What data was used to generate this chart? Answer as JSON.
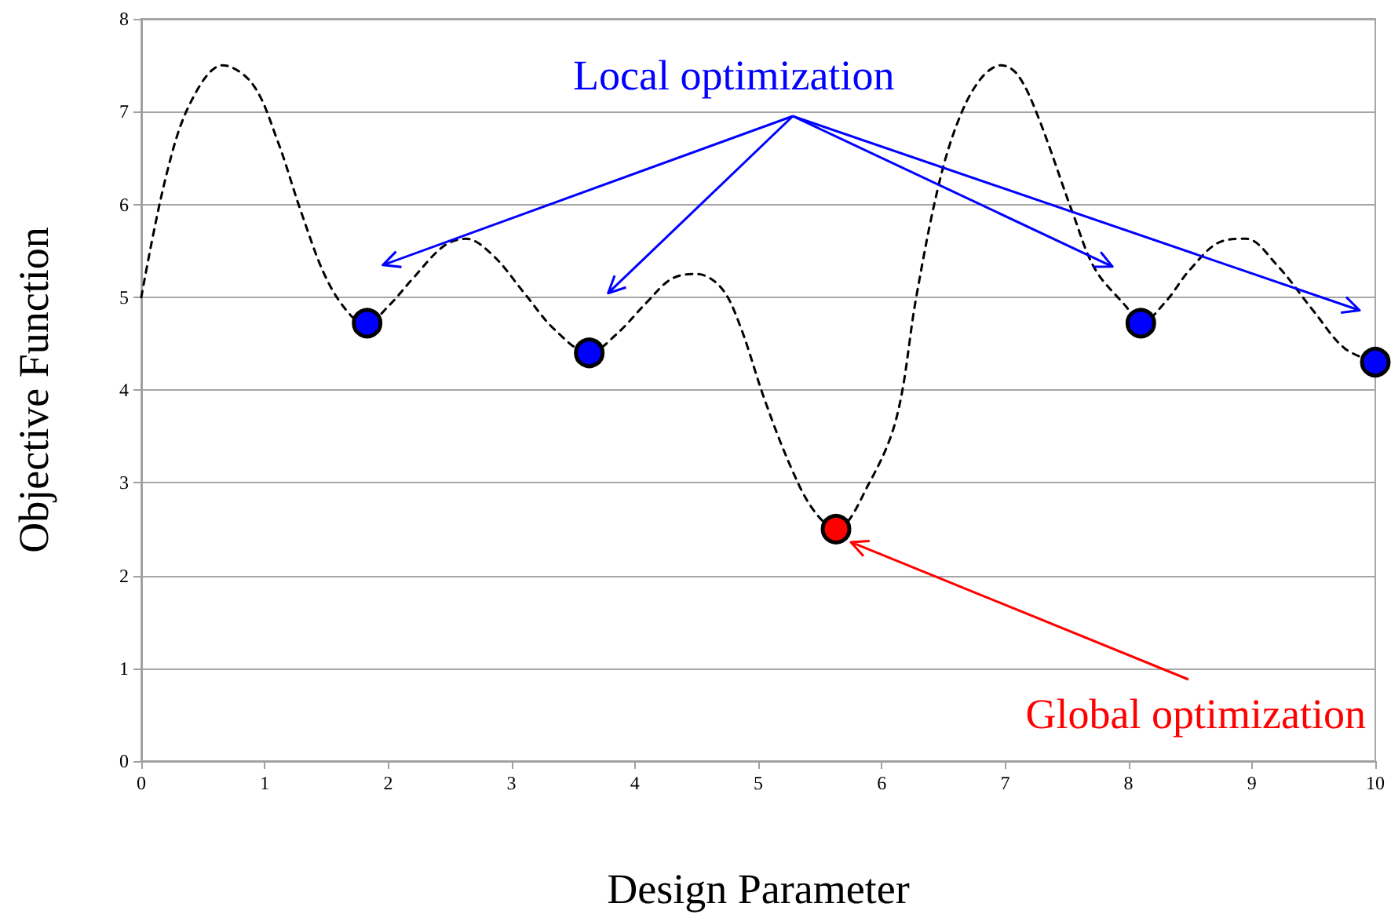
{
  "chart_data": {
    "type": "line",
    "xlabel": "Design Parameter",
    "ylabel": "Objective Function",
    "xlim": [
      0,
      10
    ],
    "xticks": [
      0,
      1,
      2,
      3,
      4,
      5,
      6,
      7,
      8,
      9,
      10
    ],
    "ylim": [
      0,
      8
    ],
    "yticks": [
      0,
      1,
      2,
      3,
      4,
      5,
      6,
      7,
      8
    ],
    "grid": "y",
    "annotations": [
      "Local optimization",
      {
        "text": "Global optimization",
        "x": 5.75,
        "y": 2.36
      }
    ],
    "series": [
      {
        "color": "#000000",
        "line_style": "dashed",
        "marker": "none",
        "x": [
          0,
          0.2,
          0.4,
          0.66,
          0.9,
          1.1,
          1.3,
          1.5,
          1.7,
          1.83,
          2.0,
          2.2,
          2.45,
          2.63,
          2.85,
          3.1,
          3.35,
          3.63,
          3.85,
          4.1,
          4.3,
          4.5,
          4.7,
          4.85,
          5.05,
          5.27,
          5.45,
          5.63,
          5.9,
          6.12,
          6.28,
          6.46,
          6.62,
          6.8,
          6.97,
          7.1,
          7.26,
          7.55,
          7.73,
          7.98,
          8.1,
          8.3,
          8.5,
          8.75,
          8.95,
          9.2,
          9.5,
          9.75,
          10
        ],
        "values": [
          5.0,
          6.3,
          7.1,
          7.5,
          7.3,
          6.7,
          5.9,
          5.2,
          4.8,
          4.72,
          4.9,
          5.2,
          5.55,
          5.63,
          5.45,
          5.05,
          4.65,
          4.4,
          4.6,
          4.95,
          5.2,
          5.25,
          5.1,
          4.7,
          3.9,
          3.15,
          2.7,
          2.5,
          3.0,
          3.7,
          5.0,
          6.2,
          6.9,
          7.35,
          7.5,
          7.4,
          6.97,
          5.9,
          5.3,
          4.9,
          4.72,
          4.95,
          5.3,
          5.6,
          5.63,
          5.35,
          4.85,
          4.45,
          4.3
        ]
      },
      {
        "type": "scatter",
        "color": "#0000ff",
        "marker": "circle",
        "x": [
          1.83,
          3.63,
          8.1,
          10
        ],
        "values": [
          4.72,
          4.4,
          4.72,
          4.3
        ]
      },
      {
        "type": "scatter",
        "color": "#ff0000",
        "marker": "circle",
        "x": [
          5.63
        ],
        "values": [
          2.5
        ]
      }
    ]
  }
}
